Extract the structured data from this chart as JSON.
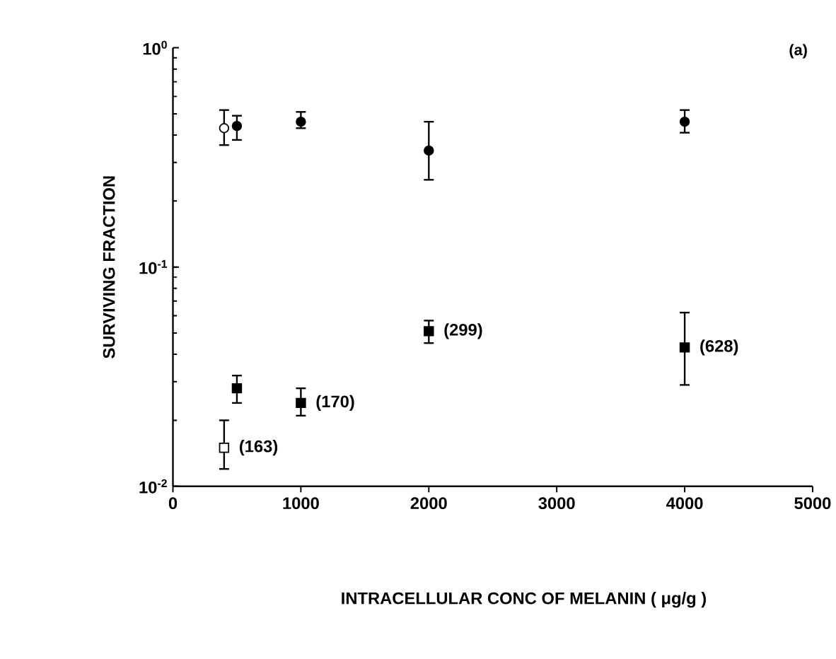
{
  "chart_data": {
    "type": "scatter",
    "xlabel": "INTRACELLULAR CONC OF MELANIN ( μg/g )",
    "ylabel": "SURVIVING FRACTION",
    "xlim": [
      0,
      5000
    ],
    "xticks": [
      0,
      1000,
      2000,
      3000,
      4000,
      5000
    ],
    "ylim": [
      0.01,
      1
    ],
    "yticks": [
      {
        "value": 0.01,
        "label": "10$^{-2}$"
      },
      {
        "value": 0.1,
        "label": "10$^{-1}$"
      },
      {
        "value": 1,
        "label": "10$^{0}$"
      }
    ],
    "log": "y",
    "grid": false,
    "series": [
      {
        "color": "#ffffff",
        "marker": "circle",
        "x": [
          400
        ],
        "values": [
          0.43
        ],
        "errors": [
          [
            0.36,
            0.52
          ]
        ]
      },
      {
        "color": "#000000",
        "marker": "circle",
        "x": [
          500,
          1000,
          2000,
          4000
        ],
        "values": [
          0.44,
          0.46,
          0.34,
          0.46
        ],
        "errors": [
          [
            0.38,
            0.49
          ],
          [
            0.43,
            0.51
          ],
          [
            0.25,
            0.46
          ],
          [
            0.41,
            0.52
          ]
        ]
      },
      {
        "color": "#000000",
        "marker": "square",
        "x": [
          500,
          1000,
          2000,
          4000
        ],
        "values": [
          0.028,
          0.024,
          0.051,
          0.043
        ],
        "errors": [
          [
            0.024,
            0.032
          ],
          [
            0.021,
            0.028
          ],
          [
            0.045,
            0.057
          ],
          [
            0.029,
            0.062
          ]
        ]
      },
      {
        "color": "#ffffff",
        "marker": "square",
        "x": [
          400
        ],
        "values": [
          0.015
        ],
        "errors": [
          [
            0.012,
            0.02
          ]
        ]
      }
    ],
    "annotations": [
      "(a)",
      {
        "text": "(163)",
        "x": 400,
        "y": 0.015
      },
      {
        "text": "(170)",
        "x": 1000,
        "y": 0.024
      },
      {
        "text": "(299)",
        "x": 2000,
        "y": 0.051
      },
      {
        "text": "(628)",
        "x": 4000,
        "y": 0.043
      }
    ]
  }
}
